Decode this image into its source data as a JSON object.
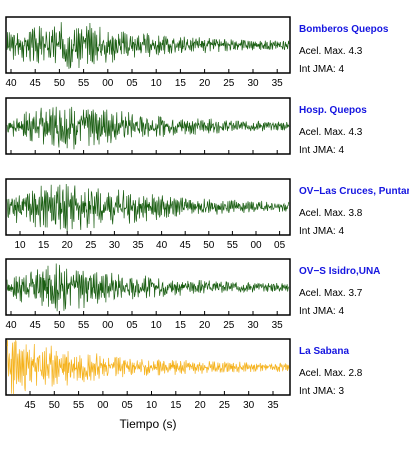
{
  "chart_data": [
    {
      "type": "line",
      "station": "Bomberos Quepos",
      "accel_label": "Acel. Max. 4.3",
      "jma_label": "Int JMA: 4",
      "color": "#1a5e12",
      "x_ticks": [
        "40",
        "45",
        "50",
        "55",
        "00",
        "05",
        "10",
        "15",
        "20",
        "25",
        "30",
        "35"
      ],
      "series": [
        {
          "values": []
        }
      ]
    },
    {
      "type": "line",
      "station": "Hosp. Quepos",
      "accel_label": "Acel. Max. 4.3",
      "jma_label": "Int JMA: 4",
      "color": "#1a5e12",
      "x_ticks": [
        "40",
        "45",
        "50",
        "55",
        "00",
        "05",
        "10",
        "15",
        "20",
        "25",
        "30",
        "35"
      ],
      "series": [
        {
          "values": []
        }
      ]
    },
    {
      "type": "line",
      "station": "OV−Las Cruces, Puntar",
      "accel_label": "Acel. Max. 3.8",
      "jma_label": "Int JMA: 4",
      "color": "#1a5e12",
      "x_ticks": [
        "10",
        "15",
        "20",
        "25",
        "30",
        "35",
        "40",
        "45",
        "50",
        "55",
        "00",
        "05"
      ],
      "series": [
        {
          "values": []
        }
      ]
    },
    {
      "type": "line",
      "station": "OV−S Isidro,UNA",
      "accel_label": "Acel. Max. 3.7",
      "jma_label": "Int JMA: 4",
      "color": "#1a5e12",
      "x_ticks": [
        "40",
        "45",
        "50",
        "55",
        "00",
        "05",
        "10",
        "15",
        "20",
        "25",
        "30",
        "35"
      ],
      "series": [
        {
          "values": []
        }
      ]
    },
    {
      "type": "line",
      "station": "La Sabana",
      "accel_label": "Acel. Max. 2.8",
      "jma_label": "Int JMA: 3",
      "color": "#f5b21c",
      "x_ticks": [
        "45",
        "50",
        "55",
        "00",
        "05",
        "10",
        "15",
        "20",
        "25",
        "30",
        "35"
      ],
      "series": [
        {
          "values": []
        }
      ]
    }
  ],
  "xlabel": "Tiempo (s)"
}
